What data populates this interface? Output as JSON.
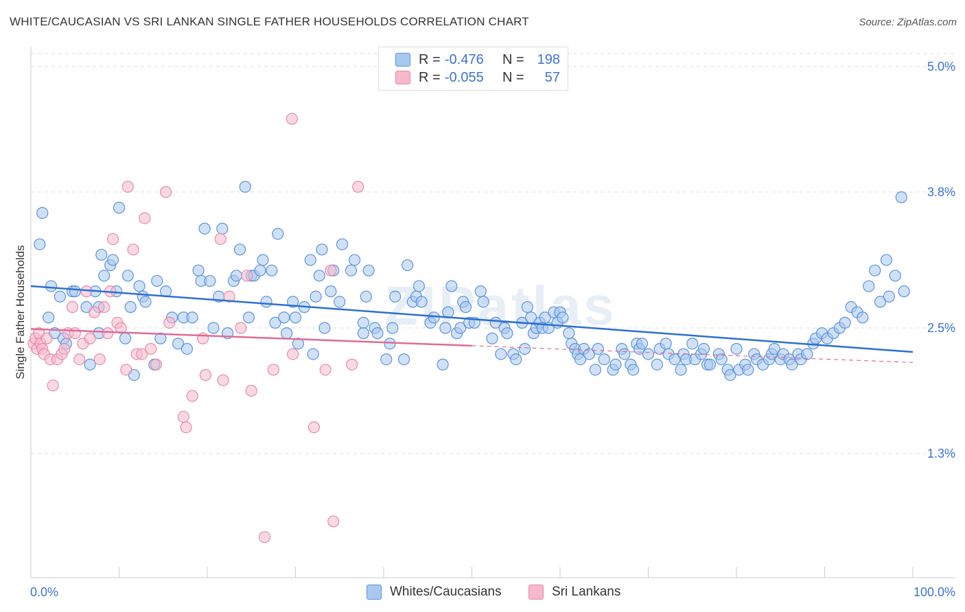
{
  "header": {
    "title": "WHITE/CAUCASIAN VS SRI LANKAN SINGLE FATHER HOUSEHOLDS CORRELATION CHART",
    "source": "Source: ZipAtlas.com"
  },
  "legend": {
    "white": {
      "r_label": "R =",
      "r_value": "-0.476",
      "n_label": "N =",
      "n_value": "198"
    },
    "srilankan": {
      "r_label": "R =",
      "r_value": "-0.055",
      "n_label": "N =",
      "n_value": "57"
    }
  },
  "bottom_legend": {
    "white": "Whites/Caucasians",
    "srilankan": "Sri Lankans"
  },
  "watermark": "ZIPatlas",
  "colors": {
    "white_fill": "#a9c8f0",
    "white_stroke": "#5b93d9",
    "white_line": "#2c6fd1",
    "sl_fill": "#f6b9cc",
    "sl_stroke": "#e889a8",
    "sl_line": "#e06b95",
    "axis_text": "#3a73d1",
    "grid": "#dddddd"
  },
  "chart_data": {
    "type": "scatter",
    "title": "WHITE/CAUCASIAN VS SRI LANKAN SINGLE FATHER HOUSEHOLDS CORRELATION CHART",
    "xlabel": "",
    "ylabel": "Single Father Households",
    "xlim": [
      0,
      100
    ],
    "ylim": [
      0,
      5.2
    ],
    "x_tick_labels": [
      "0.0%",
      "100.0%"
    ],
    "y_ticks": [
      1.3,
      2.5,
      3.8,
      5.0
    ],
    "y_tick_labels": [
      "1.3%",
      "2.5%",
      "3.8%",
      "5.0%"
    ],
    "series": [
      {
        "name": "Whites/Caucasians",
        "trend": {
          "x0": 0,
          "y0": 2.9,
          "x1": 100,
          "y1": 2.27,
          "solid_to": 100
        },
        "points": [
          [
            1.0,
            3.3
          ],
          [
            1.3,
            3.6
          ],
          [
            2.0,
            2.6
          ],
          [
            2.3,
            2.9
          ],
          [
            2.7,
            2.45
          ],
          [
            3.3,
            2.8
          ],
          [
            3.7,
            2.4
          ],
          [
            4.0,
            2.35
          ],
          [
            4.7,
            2.85
          ],
          [
            5.0,
            2.85
          ],
          [
            6.3,
            2.7
          ],
          [
            6.7,
            2.15
          ],
          [
            7.3,
            2.85
          ],
          [
            7.7,
            2.7
          ],
          [
            7.7,
            2.45
          ],
          [
            8.0,
            3.2
          ],
          [
            8.3,
            3.0
          ],
          [
            9.0,
            3.1
          ],
          [
            9.3,
            3.15
          ],
          [
            9.7,
            2.85
          ],
          [
            10.0,
            3.65
          ],
          [
            10.7,
            2.4
          ],
          [
            11.0,
            3.0
          ],
          [
            11.3,
            2.7
          ],
          [
            11.7,
            2.05
          ],
          [
            12.3,
            2.9
          ],
          [
            12.7,
            2.8
          ],
          [
            13.0,
            2.75
          ],
          [
            14.0,
            2.15
          ],
          [
            14.3,
            2.95
          ],
          [
            14.7,
            2.4
          ],
          [
            15.3,
            2.85
          ],
          [
            16.0,
            2.6
          ],
          [
            16.7,
            2.35
          ],
          [
            17.3,
            2.6
          ],
          [
            17.7,
            2.3
          ],
          [
            18.3,
            2.6
          ],
          [
            19.0,
            3.05
          ],
          [
            19.3,
            2.95
          ],
          [
            19.7,
            3.45
          ],
          [
            20.3,
            2.95
          ],
          [
            20.7,
            2.5
          ],
          [
            21.3,
            2.8
          ],
          [
            21.7,
            3.45
          ],
          [
            22.3,
            2.45
          ],
          [
            23.0,
            2.95
          ],
          [
            23.3,
            3.0
          ],
          [
            23.7,
            3.25
          ],
          [
            24.3,
            3.85
          ],
          [
            24.7,
            2.6
          ],
          [
            25.0,
            3.0
          ],
          [
            25.3,
            3.0
          ],
          [
            26.0,
            3.05
          ],
          [
            26.3,
            3.15
          ],
          [
            26.7,
            2.75
          ],
          [
            27.3,
            3.05
          ],
          [
            27.7,
            2.55
          ],
          [
            28.0,
            3.4
          ],
          [
            28.7,
            2.6
          ],
          [
            29.0,
            2.45
          ],
          [
            29.7,
            2.75
          ],
          [
            30.0,
            2.6
          ],
          [
            30.3,
            2.35
          ],
          [
            31.0,
            2.7
          ],
          [
            31.7,
            3.15
          ],
          [
            32.0,
            2.25
          ],
          [
            32.3,
            2.8
          ],
          [
            32.7,
            3.0
          ],
          [
            33.0,
            3.25
          ],
          [
            33.3,
            2.5
          ],
          [
            34.0,
            2.85
          ],
          [
            34.3,
            3.05
          ],
          [
            35.0,
            2.75
          ],
          [
            35.3,
            3.3
          ],
          [
            36.3,
            3.05
          ],
          [
            36.7,
            3.15
          ],
          [
            37.7,
            2.55
          ],
          [
            37.7,
            2.45
          ],
          [
            38.0,
            2.8
          ],
          [
            38.3,
            3.05
          ],
          [
            39.0,
            2.5
          ],
          [
            39.3,
            2.45
          ],
          [
            40.3,
            2.2
          ],
          [
            40.7,
            2.35
          ],
          [
            41.0,
            2.5
          ],
          [
            41.3,
            2.8
          ],
          [
            42.3,
            2.2
          ],
          [
            42.7,
            3.1
          ],
          [
            43.3,
            2.75
          ],
          [
            43.7,
            2.8
          ],
          [
            44.0,
            2.9
          ],
          [
            44.3,
            2.75
          ],
          [
            45.3,
            2.55
          ],
          [
            45.7,
            2.6
          ],
          [
            46.7,
            2.15
          ],
          [
            47.0,
            2.5
          ],
          [
            47.3,
            2.65
          ],
          [
            47.7,
            2.9
          ],
          [
            48.3,
            2.45
          ],
          [
            48.7,
            2.5
          ],
          [
            49.0,
            2.75
          ],
          [
            49.3,
            2.7
          ],
          [
            49.7,
            2.55
          ],
          [
            50.3,
            2.55
          ],
          [
            51.0,
            2.85
          ],
          [
            51.3,
            2.75
          ],
          [
            52.3,
            2.4
          ],
          [
            52.7,
            2.55
          ],
          [
            53.3,
            2.25
          ],
          [
            53.7,
            2.5
          ],
          [
            54.0,
            2.45
          ],
          [
            54.7,
            2.25
          ],
          [
            55.0,
            2.2
          ],
          [
            55.7,
            2.55
          ],
          [
            56.0,
            2.3
          ],
          [
            56.3,
            2.7
          ],
          [
            56.7,
            2.6
          ],
          [
            57.0,
            2.45
          ],
          [
            57.3,
            2.5
          ],
          [
            57.7,
            2.55
          ],
          [
            58.0,
            2.5
          ],
          [
            58.3,
            2.6
          ],
          [
            58.7,
            2.5
          ],
          [
            59.3,
            2.65
          ],
          [
            59.7,
            2.55
          ],
          [
            60.0,
            2.65
          ],
          [
            60.3,
            2.6
          ],
          [
            61.0,
            2.45
          ],
          [
            61.3,
            2.35
          ],
          [
            61.7,
            2.3
          ],
          [
            62.0,
            2.25
          ],
          [
            62.3,
            2.2
          ],
          [
            62.7,
            2.3
          ],
          [
            63.3,
            2.25
          ],
          [
            64.0,
            2.1
          ],
          [
            64.3,
            2.3
          ],
          [
            65.0,
            2.2
          ],
          [
            66.0,
            2.1
          ],
          [
            66.3,
            2.15
          ],
          [
            67.0,
            2.3
          ],
          [
            67.3,
            2.25
          ],
          [
            68.0,
            2.15
          ],
          [
            68.3,
            2.1
          ],
          [
            68.7,
            2.35
          ],
          [
            69.0,
            2.3
          ],
          [
            69.3,
            2.35
          ],
          [
            70.0,
            2.25
          ],
          [
            71.0,
            2.15
          ],
          [
            71.3,
            2.3
          ],
          [
            72.0,
            2.35
          ],
          [
            72.3,
            2.25
          ],
          [
            73.0,
            2.2
          ],
          [
            73.7,
            2.1
          ],
          [
            74.0,
            2.25
          ],
          [
            74.3,
            2.2
          ],
          [
            75.0,
            2.35
          ],
          [
            75.3,
            2.2
          ],
          [
            76.0,
            2.25
          ],
          [
            76.3,
            2.3
          ],
          [
            76.7,
            2.15
          ],
          [
            77.0,
            2.15
          ],
          [
            78.0,
            2.25
          ],
          [
            78.3,
            2.2
          ],
          [
            79.0,
            2.1
          ],
          [
            79.3,
            2.05
          ],
          [
            80.0,
            2.3
          ],
          [
            80.3,
            2.1
          ],
          [
            81.0,
            2.15
          ],
          [
            81.3,
            2.1
          ],
          [
            82.0,
            2.25
          ],
          [
            82.3,
            2.2
          ],
          [
            83.0,
            2.15
          ],
          [
            83.7,
            2.2
          ],
          [
            84.0,
            2.25
          ],
          [
            84.3,
            2.3
          ],
          [
            85.0,
            2.2
          ],
          [
            85.3,
            2.25
          ],
          [
            86.0,
            2.2
          ],
          [
            86.3,
            2.15
          ],
          [
            87.0,
            2.25
          ],
          [
            87.3,
            2.2
          ],
          [
            88.0,
            2.25
          ],
          [
            88.7,
            2.35
          ],
          [
            89.0,
            2.4
          ],
          [
            89.7,
            2.45
          ],
          [
            90.3,
            2.4
          ],
          [
            91.0,
            2.45
          ],
          [
            91.7,
            2.5
          ],
          [
            92.3,
            2.55
          ],
          [
            93.0,
            2.7
          ],
          [
            93.7,
            2.65
          ],
          [
            94.3,
            2.6
          ],
          [
            95.0,
            2.9
          ],
          [
            95.7,
            3.05
          ],
          [
            96.3,
            2.75
          ],
          [
            97.0,
            3.15
          ],
          [
            97.3,
            2.8
          ],
          [
            98.0,
            3.0
          ],
          [
            98.7,
            3.75
          ],
          [
            99.0,
            2.85
          ]
        ]
      },
      {
        "name": "Sri Lankans",
        "trend": {
          "x0": 0,
          "y0": 2.49,
          "x1": 100,
          "y1": 2.17,
          "solid_to": 50
        },
        "points": [
          [
            0.3,
            2.35
          ],
          [
            0.5,
            2.4
          ],
          [
            0.7,
            2.3
          ],
          [
            0.9,
            2.45
          ],
          [
            1.1,
            2.35
          ],
          [
            1.3,
            2.3
          ],
          [
            1.5,
            2.25
          ],
          [
            1.8,
            2.4
          ],
          [
            2.2,
            2.2
          ],
          [
            2.5,
            1.95
          ],
          [
            3.0,
            2.2
          ],
          [
            3.5,
            2.25
          ],
          [
            3.8,
            2.3
          ],
          [
            4.2,
            2.45
          ],
          [
            4.7,
            2.7
          ],
          [
            5.0,
            2.45
          ],
          [
            5.5,
            2.2
          ],
          [
            5.9,
            2.35
          ],
          [
            6.3,
            2.85
          ],
          [
            6.7,
            2.4
          ],
          [
            7.2,
            2.65
          ],
          [
            7.8,
            2.2
          ],
          [
            8.3,
            2.7
          ],
          [
            8.7,
            2.45
          ],
          [
            9.0,
            2.85
          ],
          [
            9.3,
            3.35
          ],
          [
            9.8,
            2.55
          ],
          [
            10.2,
            2.5
          ],
          [
            10.8,
            2.1
          ],
          [
            11.0,
            3.85
          ],
          [
            11.6,
            3.25
          ],
          [
            12.0,
            2.25
          ],
          [
            12.6,
            2.25
          ],
          [
            12.9,
            3.55
          ],
          [
            13.6,
            2.3
          ],
          [
            14.2,
            2.15
          ],
          [
            15.3,
            3.8
          ],
          [
            15.7,
            2.55
          ],
          [
            17.3,
            1.65
          ],
          [
            17.6,
            1.55
          ],
          [
            18.3,
            1.85
          ],
          [
            19.5,
            2.4
          ],
          [
            19.8,
            2.05
          ],
          [
            21.5,
            3.35
          ],
          [
            21.8,
            2.0
          ],
          [
            22.5,
            2.8
          ],
          [
            23.8,
            2.5
          ],
          [
            24.5,
            3.0
          ],
          [
            25.0,
            1.9
          ],
          [
            26.5,
            0.5
          ],
          [
            27.5,
            2.1
          ],
          [
            29.6,
            4.5
          ],
          [
            29.7,
            2.25
          ],
          [
            32.1,
            1.55
          ],
          [
            33.4,
            2.1
          ],
          [
            34.0,
            3.05
          ],
          [
            34.3,
            0.65
          ],
          [
            36.4,
            2.15
          ],
          [
            37.1,
            3.85
          ]
        ]
      }
    ]
  }
}
